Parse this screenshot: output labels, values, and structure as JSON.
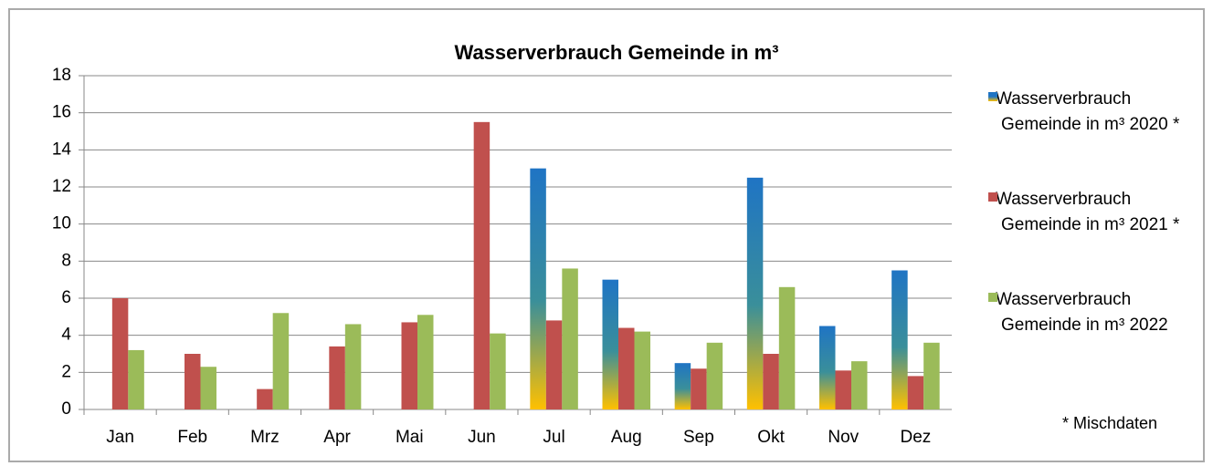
{
  "chart_data": {
    "type": "bar",
    "title": "Wasserverbrauch Gemeinde in m³",
    "categories": [
      "Jan",
      "Feb",
      "Mrz",
      "Apr",
      "Mai",
      "Jun",
      "Jul",
      "Aug",
      "Sep",
      "Okt",
      "Nov",
      "Dez"
    ],
    "series": [
      {
        "name": "Wasserverbrauch Gemeinde in m³ 2020 *",
        "color": "#1f74c4",
        "values": [
          null,
          null,
          null,
          null,
          null,
          null,
          13,
          7,
          2.5,
          12.5,
          4.5,
          7.5
        ]
      },
      {
        "name": "Wasserverbrauch Gemeinde in m³ 2021 *",
        "color": "#c0504d",
        "values": [
          6,
          3,
          1.1,
          3.4,
          4.7,
          15.5,
          4.8,
          4.4,
          2.2,
          3,
          2.1,
          1.8
        ]
      },
      {
        "name": "Wasserverbrauch Gemeinde in m³ 2022",
        "color": "#9bbb59",
        "values": [
          3.2,
          2.3,
          5.2,
          4.6,
          5.1,
          4.1,
          7.6,
          4.2,
          3.6,
          6.6,
          2.6,
          3.6
        ]
      }
    ],
    "ylim": [
      0,
      18
    ],
    "yticks": [
      0,
      2,
      4,
      6,
      8,
      10,
      12,
      14,
      16,
      18
    ],
    "grid": true,
    "annotation": "* Mischdaten"
  }
}
